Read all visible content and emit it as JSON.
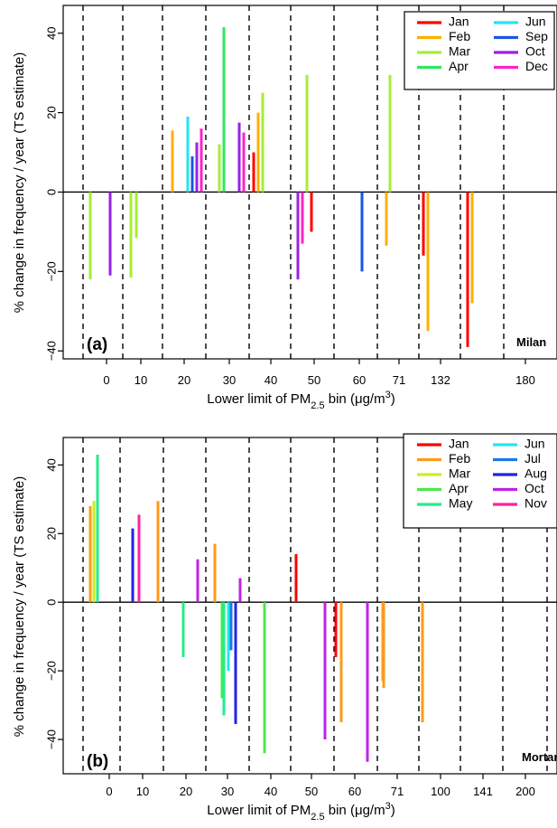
{
  "chart_data": [
    {
      "type": "bar",
      "panel_tag": "(a)",
      "site_label": "Milan",
      "xlabel_main": "Lower limit of PM",
      "xlabel_sub": "2.5",
      "xlabel_rest": " bin (μg/m",
      "xlabel_sup": "3",
      "xlabel_close": ")",
      "ylabel": "% change in frequency / year (TS estimate)",
      "ylim": [
        -42,
        47
      ],
      "yticks": [
        -40,
        -20,
        0,
        20,
        40
      ],
      "ytick_labels": [
        "−40",
        "−20",
        "0",
        "20",
        "40"
      ],
      "categories": [
        "0",
        "10",
        "20",
        "30",
        "40",
        "50",
        "60",
        "71",
        "132",
        "180"
      ],
      "grid": "dashed vertical separators between bins",
      "legend": {
        "placement": "top-right",
        "columns": 2,
        "entries": [
          {
            "label": "Jan",
            "color": "#ff0000"
          },
          {
            "label": "Feb",
            "color": "#ffb000"
          },
          {
            "label": "Mar",
            "color": "#a6ee33"
          },
          {
            "label": "Apr",
            "color": "#2ee860"
          },
          {
            "label": "Jun",
            "color": "#22e6ee"
          },
          {
            "label": "Sep",
            "color": "#1a55e6"
          },
          {
            "label": "Oct",
            "color": "#9a22e6"
          },
          {
            "label": "Dec",
            "color": "#ff22c8"
          }
        ]
      },
      "bins": [
        {
          "bars": [
            {
              "month": "Mar",
              "value": -22
            },
            {
              "month": "Oct",
              "value": -21
            }
          ]
        },
        {
          "bars": [
            {
              "month": "Mar",
              "value": -21.5
            },
            {
              "month": "Mar",
              "value": -11.5
            }
          ]
        },
        {
          "bars": [
            {
              "month": "Feb",
              "value": 15.5
            },
            {
              "month": "Jun",
              "value": 19
            },
            {
              "month": "Sep",
              "value": 9
            },
            {
              "month": "Oct",
              "value": 12.5
            },
            {
              "month": "Dec",
              "value": 16
            }
          ]
        },
        {
          "bars": [
            {
              "month": "Mar",
              "value": 12
            },
            {
              "month": "Apr",
              "value": 41.5
            },
            {
              "month": "Oct",
              "value": 17.5
            },
            {
              "month": "Dec",
              "value": 15
            },
            {
              "month": "Jan",
              "value": 10
            },
            {
              "month": "Feb",
              "value": 20
            }
          ]
        },
        {
          "bars": [
            {
              "month": "Mar",
              "value": 25
            }
          ]
        },
        {
          "bars": [
            {
              "month": "Oct",
              "value": -22
            },
            {
              "month": "Dec",
              "value": -13
            },
            {
              "month": "Mar",
              "value": 29.5
            },
            {
              "month": "Jan",
              "value": -10
            }
          ]
        },
        {
          "bars": [
            {
              "month": "Sep",
              "value": -20
            }
          ]
        },
        {
          "bars": [
            {
              "month": "Feb",
              "value": -13.5
            },
            {
              "month": "Mar",
              "value": 29.5
            }
          ]
        },
        {
          "bars": [
            {
              "month": "Jan",
              "value": -16
            },
            {
              "month": "Feb",
              "value": -35
            }
          ]
        },
        {
          "bars": [
            {
              "month": "Jan",
              "value": -39
            },
            {
              "month": "Feb",
              "value": -28
            }
          ]
        }
      ]
    },
    {
      "type": "bar",
      "panel_tag": "(b)",
      "site_label": "Mortara",
      "xlabel_main": "Lower limit of PM",
      "xlabel_sub": "2.5",
      "xlabel_rest": " bin (μg/m",
      "xlabel_sup": "3",
      "xlabel_close": ")",
      "ylabel": "% change in frequency / year (TS estimate)",
      "ylim": [
        -50,
        48
      ],
      "yticks": [
        -40,
        -20,
        0,
        20,
        40
      ],
      "ytick_labels": [
        "−40",
        "−20",
        "0",
        "20",
        "40"
      ],
      "categories": [
        "0",
        "10",
        "20",
        "30",
        "40",
        "50",
        "60",
        "71",
        "100",
        "141",
        "200"
      ],
      "grid": "dashed vertical separators between bins",
      "legend": {
        "placement": "top-right",
        "columns": 2,
        "entries": [
          {
            "label": "Jan",
            "color": "#ff0000"
          },
          {
            "label": "Feb",
            "color": "#ff9a1a"
          },
          {
            "label": "Mar",
            "color": "#c6f020"
          },
          {
            "label": "Apr",
            "color": "#4ce84a"
          },
          {
            "label": "May",
            "color": "#22ee88"
          },
          {
            "label": "Jun",
            "color": "#22e6ee"
          },
          {
            "label": "Jul",
            "color": "#1a7ae6"
          },
          {
            "label": "Aug",
            "color": "#2222e6"
          },
          {
            "label": "Oct",
            "color": "#c022e6"
          },
          {
            "label": "Nov",
            "color": "#ff22a0"
          }
        ]
      },
      "bins": [
        {
          "bars": [
            {
              "month": "Feb",
              "value": 28
            },
            {
              "month": "Mar",
              "value": 29.5
            },
            {
              "month": "May",
              "value": 43
            }
          ]
        },
        {
          "bars": [
            {
              "month": "Aug",
              "value": 21.5
            },
            {
              "month": "Nov",
              "value": 25.5
            },
            {
              "month": "Feb",
              "value": 29.5
            }
          ]
        },
        {
          "bars": [
            {
              "month": "May",
              "value": -16
            },
            {
              "month": "Oct",
              "value": 12.5
            }
          ]
        },
        {
          "bars": [
            {
              "month": "Feb",
              "value": 17
            },
            {
              "month": "Apr",
              "value": -28
            },
            {
              "month": "May",
              "value": -33
            },
            {
              "month": "Jun",
              "value": -20
            },
            {
              "month": "Jul",
              "value": -14
            },
            {
              "month": "Aug",
              "value": -35.5
            },
            {
              "month": "Oct",
              "value": 7
            }
          ]
        },
        {
          "bars": [
            {
              "month": "Apr",
              "value": -44
            },
            {
              "month": "Jan",
              "value": 14
            }
          ]
        },
        {
          "bars": [
            {
              "month": "Oct",
              "value": -40
            },
            {
              "month": "Jan",
              "value": -16
            },
            {
              "month": "Feb",
              "value": -35
            }
          ]
        },
        {
          "bars": [
            {
              "month": "Oct",
              "value": -46.5
            },
            {
              "month": "Feb",
              "value": -25
            }
          ]
        },
        {
          "bars": [
            {
              "month": "Feb",
              "value": -23
            }
          ]
        },
        {
          "bars": [
            {
              "month": "Feb",
              "value": -35
            }
          ]
        },
        {
          "bars": []
        },
        {
          "bars": []
        }
      ]
    }
  ]
}
